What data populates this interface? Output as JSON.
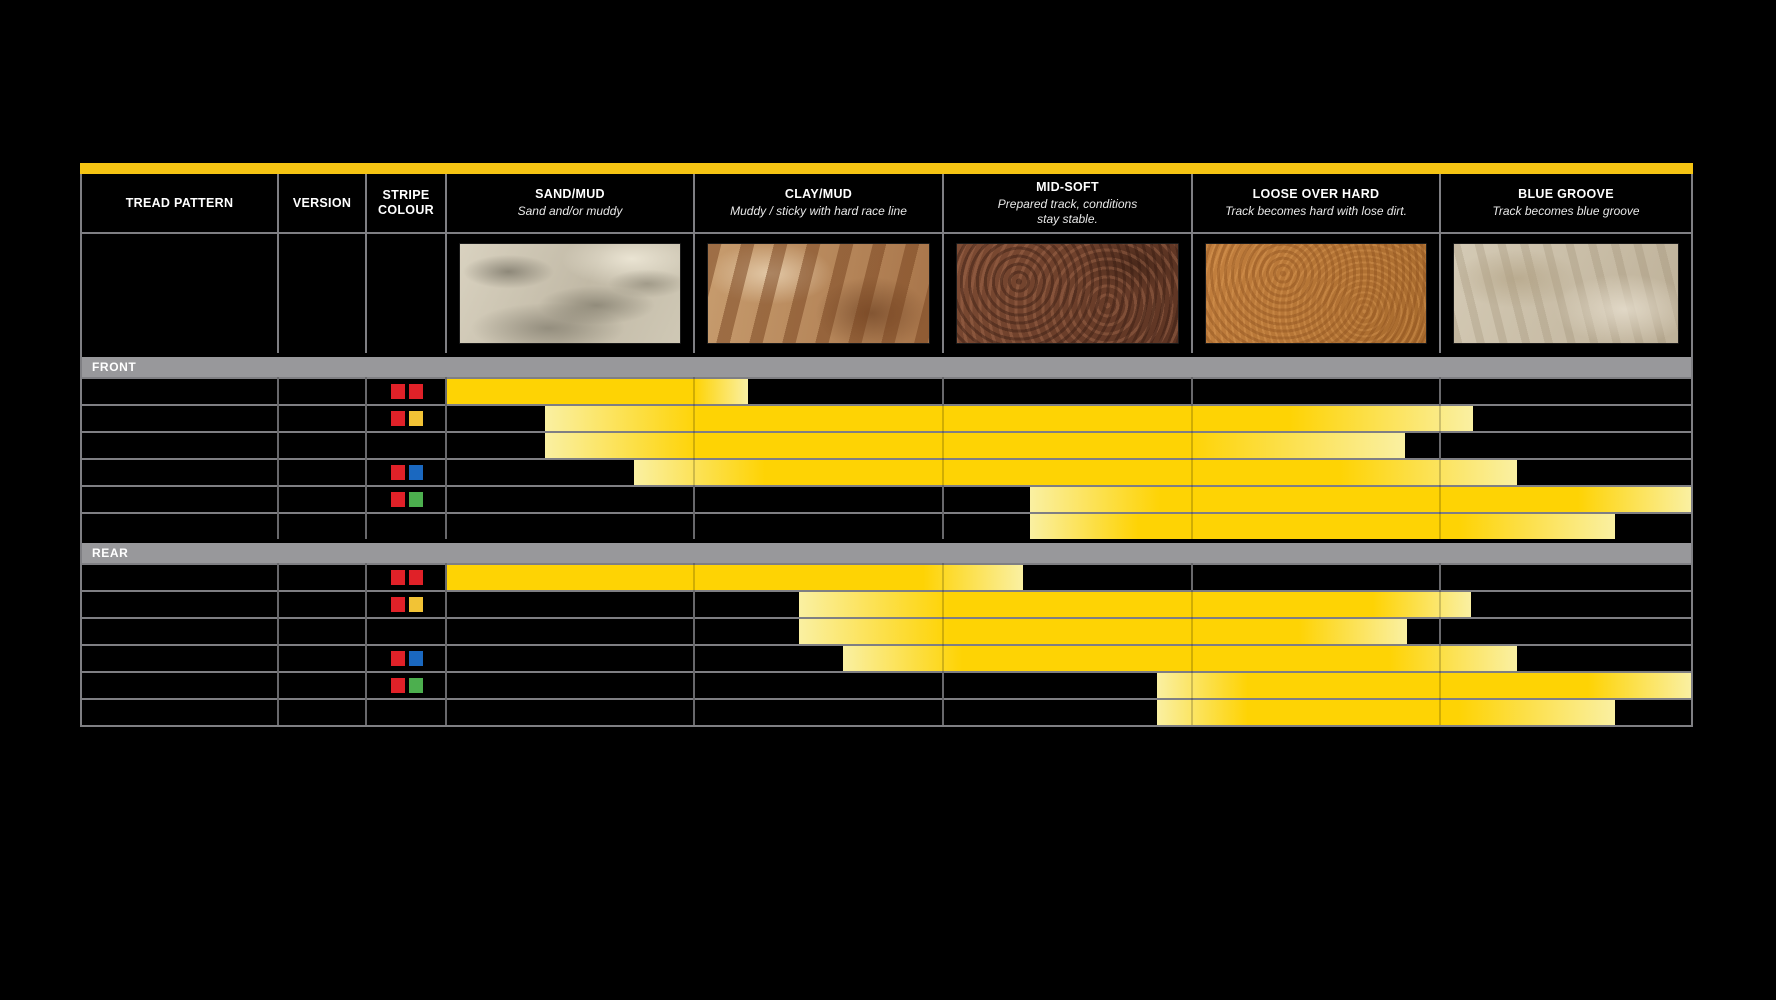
{
  "colors": {
    "accent_yellow": "#F5C413",
    "bar_yellow": "#FED304",
    "bar_pale": "#FAF0A2",
    "section_gray": "#98989B",
    "grid_gray": "#7F7F83",
    "stripe_swatches": {
      "red": "#E02128",
      "yellow": "#F2C335",
      "blue": "#1A68C0",
      "green": "#4CAF4E"
    }
  },
  "header": {
    "columns": [
      {
        "id": "tread",
        "title_lines": [
          "TREAD PATTERN"
        ]
      },
      {
        "id": "version",
        "title_lines": [
          "VERSION"
        ]
      },
      {
        "id": "stripe",
        "title_lines": [
          "STRIPE",
          "COLOUR"
        ]
      },
      {
        "id": "sand",
        "title_lines": [
          "SAND/MUD"
        ],
        "subtitle_lines": [
          "Sand and/or muddy"
        ],
        "photo": "sand"
      },
      {
        "id": "clay",
        "title_lines": [
          "CLAY/MUD"
        ],
        "subtitle_lines": [
          "Muddy / sticky with hard race line"
        ],
        "photo": "clay"
      },
      {
        "id": "midsoft",
        "title_lines": [
          "MID-SOFT"
        ],
        "subtitle_lines": [
          "Prepared track, conditions",
          "stay stable."
        ],
        "photo": "midsoft"
      },
      {
        "id": "loose",
        "title_lines": [
          "LOOSE OVER HARD"
        ],
        "subtitle_lines": [
          "Track becomes hard with lose dirt."
        ],
        "photo": "loose"
      },
      {
        "id": "bluegroove",
        "title_lines": [
          "BLUE GROOVE"
        ],
        "subtitle_lines": [
          "Track becomes blue groove"
        ],
        "photo": "bluegroove"
      }
    ]
  },
  "sections": [
    {
      "label": "FRONT",
      "rows": [
        {
          "stripes": [
            "red",
            "red"
          ],
          "bar": {
            "start": 0,
            "solid_start": 0,
            "solid_end": 19.9,
            "end": 24.2
          }
        },
        {
          "stripes": [
            "red",
            "yellow"
          ],
          "bar": {
            "start": 7.9,
            "solid_start": 20.3,
            "solid_end": 67.7,
            "end": 82.5
          }
        },
        {
          "stripes": [],
          "bar": {
            "start": 7.9,
            "solid_start": 20.3,
            "solid_end": 59.6,
            "end": 77.0
          }
        },
        {
          "stripes": [
            "red",
            "blue"
          ],
          "bar": {
            "start": 15.0,
            "solid_start": 25.5,
            "solid_end": 71.7,
            "end": 86.0
          }
        },
        {
          "stripes": [
            "red",
            "green"
          ],
          "bar": {
            "start": 46.9,
            "solid_start": 57.4,
            "solid_end": 90.9,
            "end": 100
          }
        },
        {
          "stripes": [],
          "bar": {
            "start": 46.9,
            "solid_start": 55.6,
            "solid_end": 81.3,
            "end": 93.9
          }
        }
      ]
    },
    {
      "label": "REAR",
      "rows": [
        {
          "stripes": [
            "red",
            "red"
          ],
          "bar": {
            "start": 0,
            "solid_start": 0,
            "solid_end": 38.3,
            "end": 46.3
          }
        },
        {
          "stripes": [
            "red",
            "yellow"
          ],
          "bar": {
            "start": 28.3,
            "solid_start": 40.4,
            "solid_end": 74.4,
            "end": 82.3
          }
        },
        {
          "stripes": [],
          "bar": {
            "start": 28.3,
            "solid_start": 40.4,
            "solid_end": 68.5,
            "end": 77.2
          }
        },
        {
          "stripes": [
            "red",
            "blue"
          ],
          "bar": {
            "start": 31.8,
            "solid_start": 41.4,
            "solid_end": 75.7,
            "end": 86.0
          }
        },
        {
          "stripes": [
            "red",
            "green"
          ],
          "bar": {
            "start": 57.1,
            "solid_start": 64.4,
            "solid_end": 91.7,
            "end": 100
          }
        },
        {
          "stripes": [],
          "bar": {
            "start": 57.1,
            "solid_start": 64.4,
            "solid_end": 81.3,
            "end": 93.9
          }
        }
      ]
    }
  ],
  "chart_data": {
    "type": "heatmap",
    "title": "Tyre tread pattern suitability by track condition (FRONT / REAR)",
    "categories": [
      "SAND/MUD",
      "CLAY/MUD",
      "MID-SOFT",
      "LOOSE OVER HARD",
      "BLUE GROOVE"
    ],
    "category_subtitles": [
      "Sand and/or muddy",
      "Muddy / sticky with hard race line",
      "Prepared track, conditions stay stable.",
      "Track becomes hard with lose dirt.",
      "Track becomes blue groove"
    ],
    "x_axis_note": "range_pct spans the five condition columns: 0 = left edge of SAND/MUD, 100 = right edge of BLUE GROOVE, each condition = 20 units; peak_pct is the fully-saturated (solid yellow) portion of the bar",
    "legend_position": "none",
    "grid": true,
    "series": [
      {
        "section": "FRONT",
        "row": 1,
        "stripe_colours": [
          "red",
          "red"
        ],
        "range_pct": [
          0,
          24.2
        ],
        "peak_pct": [
          0,
          19.9
        ]
      },
      {
        "section": "FRONT",
        "row": 2,
        "stripe_colours": [
          "red",
          "yellow"
        ],
        "range_pct": [
          7.9,
          82.5
        ],
        "peak_pct": [
          20.3,
          67.7
        ]
      },
      {
        "section": "FRONT",
        "row": 3,
        "stripe_colours": [],
        "range_pct": [
          7.9,
          77.0
        ],
        "peak_pct": [
          20.3,
          59.6
        ]
      },
      {
        "section": "FRONT",
        "row": 4,
        "stripe_colours": [
          "red",
          "blue"
        ],
        "range_pct": [
          15.0,
          86.0
        ],
        "peak_pct": [
          25.5,
          71.7
        ]
      },
      {
        "section": "FRONT",
        "row": 5,
        "stripe_colours": [
          "red",
          "green"
        ],
        "range_pct": [
          46.9,
          100
        ],
        "peak_pct": [
          57.4,
          90.9
        ]
      },
      {
        "section": "FRONT",
        "row": 6,
        "stripe_colours": [],
        "range_pct": [
          46.9,
          93.9
        ],
        "peak_pct": [
          55.6,
          81.3
        ]
      },
      {
        "section": "REAR",
        "row": 1,
        "stripe_colours": [
          "red",
          "red"
        ],
        "range_pct": [
          0,
          46.3
        ],
        "peak_pct": [
          0,
          38.3
        ]
      },
      {
        "section": "REAR",
        "row": 2,
        "stripe_colours": [
          "red",
          "yellow"
        ],
        "range_pct": [
          28.3,
          82.3
        ],
        "peak_pct": [
          40.4,
          74.4
        ]
      },
      {
        "section": "REAR",
        "row": 3,
        "stripe_colours": [],
        "range_pct": [
          28.3,
          77.2
        ],
        "peak_pct": [
          40.4,
          68.5
        ]
      },
      {
        "section": "REAR",
        "row": 4,
        "stripe_colours": [
          "red",
          "blue"
        ],
        "range_pct": [
          31.8,
          86.0
        ],
        "peak_pct": [
          41.4,
          75.7
        ]
      },
      {
        "section": "REAR",
        "row": 5,
        "stripe_colours": [
          "red",
          "green"
        ],
        "range_pct": [
          57.1,
          100
        ],
        "peak_pct": [
          64.4,
          91.7
        ]
      },
      {
        "section": "REAR",
        "row": 6,
        "stripe_colours": [],
        "range_pct": [
          57.1,
          93.9
        ],
        "peak_pct": [
          64.4,
          81.3
        ]
      }
    ]
  }
}
